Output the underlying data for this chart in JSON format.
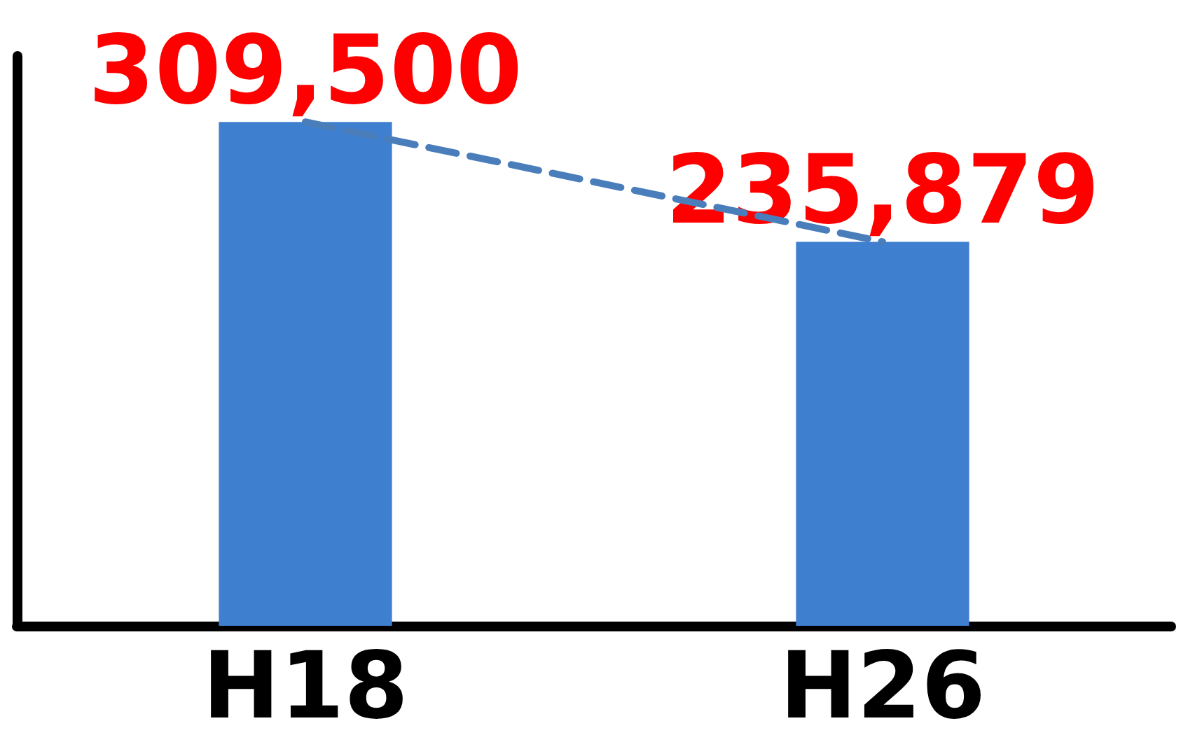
{
  "chart_data": {
    "type": "bar",
    "categories": [
      "H18",
      "H26"
    ],
    "series": [
      {
        "color": "#3f7fcf",
        "values": [
          309500,
          235879
        ],
        "value_labels": [
          "309,500",
          "235,879"
        ]
      },
      {
        "type": "line",
        "color": "#4a7ebb",
        "values": [
          309500,
          235879
        ],
        "line_style": "dashed",
        "marker": "none"
      }
    ],
    "grid": false
  }
}
